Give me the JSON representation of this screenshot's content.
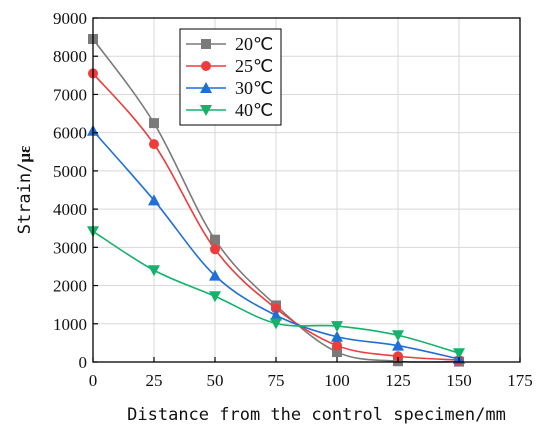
{
  "chart_data": {
    "type": "line",
    "xlabel": "Distance from the control specimen/mm",
    "ylabel_prefix": "Strain/",
    "ylabel_unit": "με",
    "xlim": [
      0,
      175
    ],
    "ylim": [
      0,
      9000
    ],
    "xticks": [
      "0",
      "25",
      "50",
      "75",
      "100",
      "125",
      "150",
      "175"
    ],
    "yticks": [
      "0",
      "1000",
      "2000",
      "3000",
      "4000",
      "5000",
      "6000",
      "7000",
      "8000",
      "9000"
    ],
    "grid": true,
    "legend_position": "top-left",
    "x": [
      0,
      25,
      50,
      75,
      100,
      125,
      150
    ],
    "series": [
      {
        "name": "20℃",
        "color": "#7a7a7a",
        "marker": "square",
        "values": [
          8450,
          6250,
          3200,
          1480,
          260,
          20,
          10
        ]
      },
      {
        "name": "25℃",
        "color": "#ee3b3b",
        "marker": "circle",
        "values": [
          7550,
          5700,
          2950,
          1400,
          430,
          150,
          50
        ]
      },
      {
        "name": "30℃",
        "color": "#1f6fd6",
        "marker": "triangle-up",
        "values": [
          6050,
          4230,
          2260,
          1220,
          660,
          430,
          80
        ]
      },
      {
        "name": "40℃",
        "color": "#15b26b",
        "marker": "triangle-down",
        "values": [
          3420,
          2400,
          1720,
          1010,
          940,
          700,
          230
        ]
      }
    ]
  }
}
